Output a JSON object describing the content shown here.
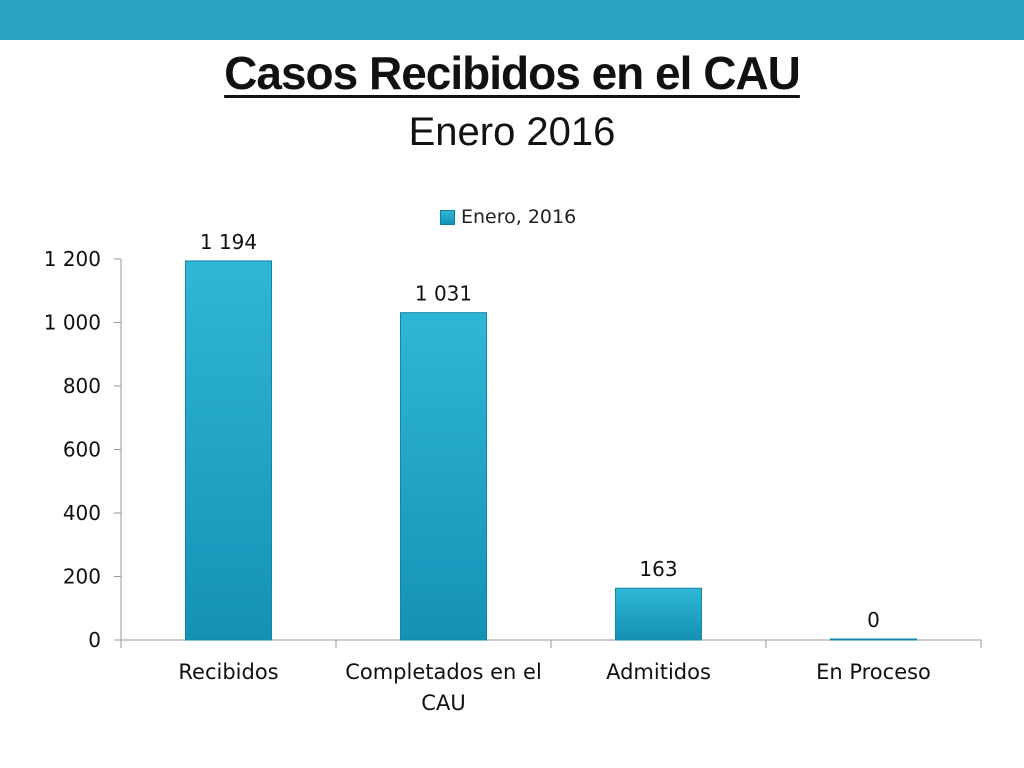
{
  "slide": {
    "title": "Casos Recibidos en el CAU",
    "subtitle": "Enero 2016"
  },
  "colors": {
    "band": "#2ba3c2",
    "bar_top": "#2fb6d6",
    "bar_bottom": "#1492b6",
    "axis": "#9a9a9a"
  },
  "chart_data": {
    "type": "bar",
    "categories": [
      [
        "Recibidos"
      ],
      [
        "Completados en el",
        "CAU"
      ],
      [
        "Admitidos"
      ],
      [
        "En Proceso"
      ]
    ],
    "series": [
      {
        "name": "Enero, 2016",
        "values": [
          1194,
          1031,
          163,
          0
        ]
      }
    ],
    "data_labels": [
      "1 194",
      "1 031",
      "163",
      "0"
    ],
    "y_ticks": [
      0,
      200,
      400,
      600,
      800,
      1000,
      1200
    ],
    "y_tick_labels": [
      "0",
      "200",
      "400",
      "600",
      "800",
      "1 000",
      "1 200"
    ],
    "ylim": [
      0,
      1200
    ],
    "title": "",
    "xlabel": "",
    "ylabel": "",
    "grid": false,
    "legend_position": "top-center"
  }
}
